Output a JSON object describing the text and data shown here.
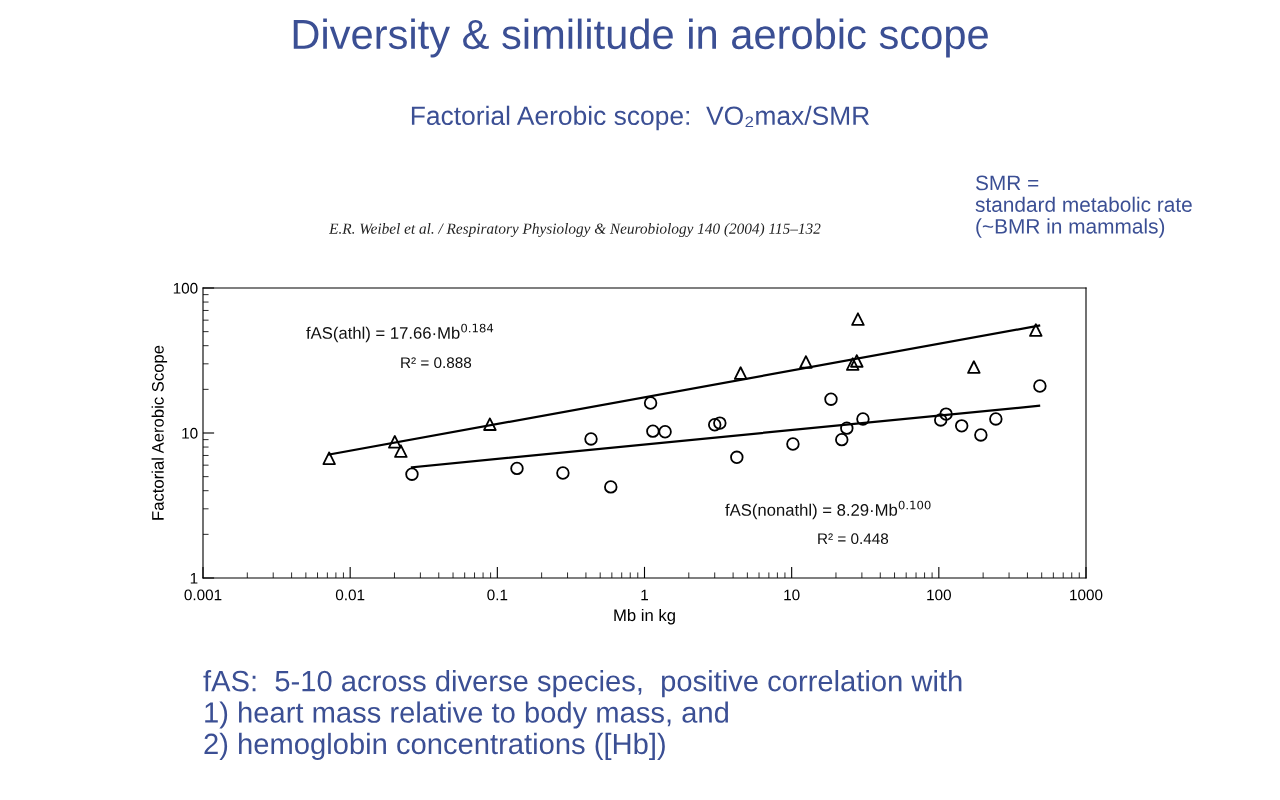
{
  "chart_data": {
    "type": "scatter",
    "title": "Diversity & similitude in aerobic scope",
    "subtitle": "Factorial Aerobic scope:  VO₂max/SMR",
    "xlabel": "Mb in kg",
    "ylabel": "Factorial Aerobic Scope",
    "log": "xy",
    "grid": false,
    "xlim": [
      0.001,
      1000
    ],
    "xticks": [
      0.001,
      0.01,
      0.1,
      1,
      10,
      100,
      1000
    ],
    "ylim": [
      1,
      100
    ],
    "yticks": [
      1,
      10,
      100
    ],
    "series": [
      {
        "marker": "triangle",
        "color": "#000000",
        "x": [
          0.0072,
          0.0201,
          0.0221,
          0.089,
          4.5,
          12.5,
          28.2,
          27.7,
          26,
          173,
          456
        ],
        "values": [
          6.7,
          8.7,
          7.5,
          11.5,
          25.9,
          30.9,
          61,
          31.4,
          29.9,
          28.5,
          51.3
        ]
      },
      {
        "marker": "circle",
        "color": "#000000",
        "x": [
          0.0263,
          0.136,
          0.279,
          0.433,
          0.59,
          1.1,
          1.14,
          1.38,
          3.0,
          3.25,
          4.24,
          10.2,
          18.5,
          21.9,
          23.7,
          30.5,
          103,
          112,
          143,
          193,
          244,
          486
        ],
        "values": [
          5.2,
          5.7,
          5.3,
          9.1,
          4.25,
          16.1,
          10.3,
          10.2,
          11.4,
          11.7,
          6.8,
          8.4,
          17.1,
          9.0,
          10.8,
          12.5,
          12.3,
          13.5,
          11.2,
          9.7,
          12.5,
          21.1
        ]
      },
      {
        "type": "line",
        "marker": "none",
        "line_style": "solid",
        "color": "#000000",
        "x": [
          0.0072,
          480
        ],
        "values": [
          7.1,
          55
        ]
      },
      {
        "type": "line",
        "marker": "none",
        "line_style": "solid",
        "color": "#000000",
        "x": [
          0.0263,
          480
        ],
        "values": [
          5.8,
          15.4
        ]
      }
    ],
    "annotations": [
      "E.R. Weibel et al. / Respiratory Physiology & Neurobiology 140 (2004) 115–132",
      "SMR =\nstandard metabolic rate\n(~BMR in mammals)",
      "fAS(athl) = 17.66·Mb$^{0.184}$",
      "R² = 0.888",
      "fAS(nonathl) = 8.29·Mb$^{0.100}$",
      "R² = 0.448",
      "fAS:  5-10 across diverse species,  positive correlation with\n1) heart mass relative to body mass, and\n2) hemoglobin concentrations ([Hb])"
    ]
  }
}
